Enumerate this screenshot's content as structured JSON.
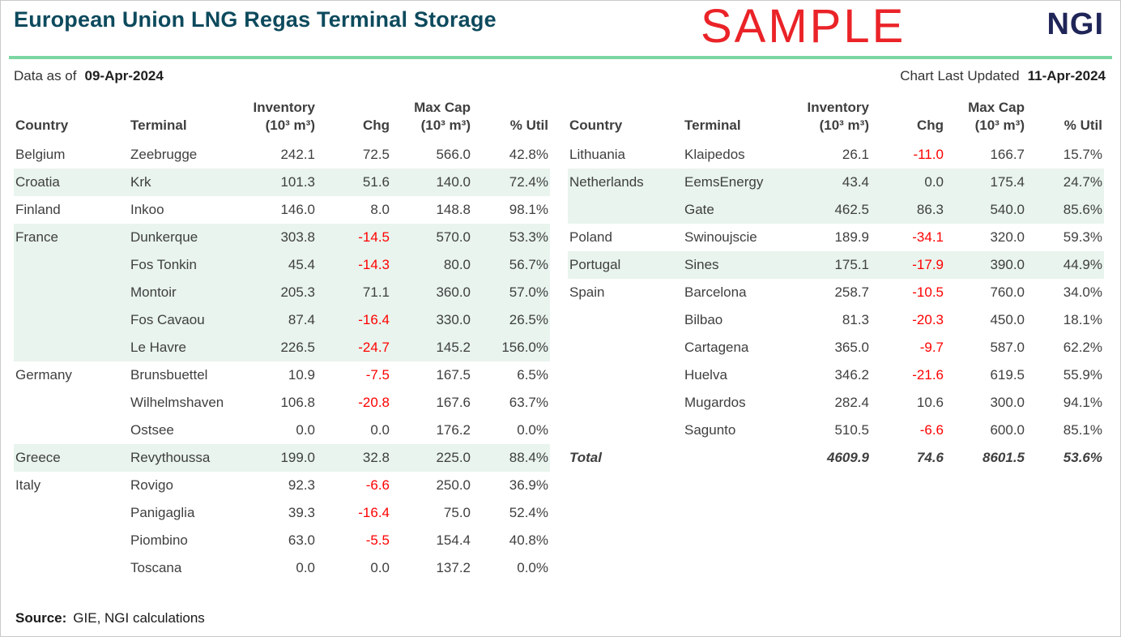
{
  "header": {
    "title": "European Union LNG Regas Terminal Storage",
    "watermark": "SAMPLE",
    "logo": "NGI",
    "data_as_of_label": "Data as of",
    "data_as_of_value": "09-Apr-2024",
    "last_updated_label": "Chart Last Updated",
    "last_updated_value": "11-Apr-2024"
  },
  "columns": {
    "country": "Country",
    "terminal": "Terminal",
    "inventory_line1": "Inventory",
    "inventory_line2": "(10³ m³)",
    "chg": "Chg",
    "maxcap_line1": "Max Cap",
    "maxcap_line2": "(10³ m³)",
    "util": "% Util"
  },
  "chart_data": {
    "type": "table",
    "title": "European Union LNG Regas Terminal Storage",
    "column_headers": [
      "Country",
      "Terminal",
      "Inventory (10³ m³)",
      "Chg",
      "Max Cap (10³ m³)",
      "% Util"
    ],
    "left_rows": [
      {
        "country": "Belgium",
        "terminal": "Zeebrugge",
        "inventory": "242.1",
        "chg": "72.5",
        "max_cap": "566.0",
        "util": "42.8%",
        "band": "white"
      },
      {
        "country": "Croatia",
        "terminal": "Krk",
        "inventory": "101.3",
        "chg": "51.6",
        "max_cap": "140.0",
        "util": "72.4%",
        "band": "mint"
      },
      {
        "country": "Finland",
        "terminal": "Inkoo",
        "inventory": "146.0",
        "chg": "8.0",
        "max_cap": "148.8",
        "util": "98.1%",
        "band": "white"
      },
      {
        "country": "France",
        "terminal": "Dunkerque",
        "inventory": "303.8",
        "chg": "-14.5",
        "max_cap": "570.0",
        "util": "53.3%",
        "band": "mint"
      },
      {
        "country": "",
        "terminal": "Fos Tonkin",
        "inventory": "45.4",
        "chg": "-14.3",
        "max_cap": "80.0",
        "util": "56.7%",
        "band": "mint"
      },
      {
        "country": "",
        "terminal": "Montoir",
        "inventory": "205.3",
        "chg": "71.1",
        "max_cap": "360.0",
        "util": "57.0%",
        "band": "mint"
      },
      {
        "country": "",
        "terminal": "Fos Cavaou",
        "inventory": "87.4",
        "chg": "-16.4",
        "max_cap": "330.0",
        "util": "26.5%",
        "band": "mint"
      },
      {
        "country": "",
        "terminal": "Le Havre",
        "inventory": "226.5",
        "chg": "-24.7",
        "max_cap": "145.2",
        "util": "156.0%",
        "band": "mint"
      },
      {
        "country": "Germany",
        "terminal": "Brunsbuettel",
        "inventory": "10.9",
        "chg": "-7.5",
        "max_cap": "167.5",
        "util": "6.5%",
        "band": "white"
      },
      {
        "country": "",
        "terminal": "Wilhelmshaven",
        "inventory": "106.8",
        "chg": "-20.8",
        "max_cap": "167.6",
        "util": "63.7%",
        "band": "white"
      },
      {
        "country": "",
        "terminal": "Ostsee",
        "inventory": "0.0",
        "chg": "0.0",
        "max_cap": "176.2",
        "util": "0.0%",
        "band": "white"
      },
      {
        "country": "Greece",
        "terminal": "Revythoussa",
        "inventory": "199.0",
        "chg": "32.8",
        "max_cap": "225.0",
        "util": "88.4%",
        "band": "mint"
      },
      {
        "country": "Italy",
        "terminal": "Rovigo",
        "inventory": "92.3",
        "chg": "-6.6",
        "max_cap": "250.0",
        "util": "36.9%",
        "band": "white"
      },
      {
        "country": "",
        "terminal": "Panigaglia",
        "inventory": "39.3",
        "chg": "-16.4",
        "max_cap": "75.0",
        "util": "52.4%",
        "band": "white"
      },
      {
        "country": "",
        "terminal": "Piombino",
        "inventory": "63.0",
        "chg": "-5.5",
        "max_cap": "154.4",
        "util": "40.8%",
        "band": "white"
      },
      {
        "country": "",
        "terminal": "Toscana",
        "inventory": "0.0",
        "chg": "0.0",
        "max_cap": "137.2",
        "util": "0.0%",
        "band": "white"
      }
    ],
    "right_rows": [
      {
        "country": "Lithuania",
        "terminal": "Klaipedos",
        "inventory": "26.1",
        "chg": "-11.0",
        "max_cap": "166.7",
        "util": "15.7%",
        "band": "white"
      },
      {
        "country": "Netherlands",
        "terminal": "EemsEnergy",
        "inventory": "43.4",
        "chg": "0.0",
        "max_cap": "175.4",
        "util": "24.7%",
        "band": "mint"
      },
      {
        "country": "",
        "terminal": "Gate",
        "inventory": "462.5",
        "chg": "86.3",
        "max_cap": "540.0",
        "util": "85.6%",
        "band": "mint"
      },
      {
        "country": "Poland",
        "terminal": "Swinoujscie",
        "inventory": "189.9",
        "chg": "-34.1",
        "max_cap": "320.0",
        "util": "59.3%",
        "band": "white"
      },
      {
        "country": "Portugal",
        "terminal": "Sines",
        "inventory": "175.1",
        "chg": "-17.9",
        "max_cap": "390.0",
        "util": "44.9%",
        "band": "mint"
      },
      {
        "country": "Spain",
        "terminal": "Barcelona",
        "inventory": "258.7",
        "chg": "-10.5",
        "max_cap": "760.0",
        "util": "34.0%",
        "band": "white"
      },
      {
        "country": "",
        "terminal": "Bilbao",
        "inventory": "81.3",
        "chg": "-20.3",
        "max_cap": "450.0",
        "util": "18.1%",
        "band": "white"
      },
      {
        "country": "",
        "terminal": "Cartagena",
        "inventory": "365.0",
        "chg": "-9.7",
        "max_cap": "587.0",
        "util": "62.2%",
        "band": "white"
      },
      {
        "country": "",
        "terminal": "Huelva",
        "inventory": "346.2",
        "chg": "-21.6",
        "max_cap": "619.5",
        "util": "55.9%",
        "band": "white"
      },
      {
        "country": "",
        "terminal": "Mugardos",
        "inventory": "282.4",
        "chg": "10.6",
        "max_cap": "300.0",
        "util": "94.1%",
        "band": "white"
      },
      {
        "country": "",
        "terminal": "Sagunto",
        "inventory": "510.5",
        "chg": "-6.6",
        "max_cap": "600.0",
        "util": "85.1%",
        "band": "white"
      }
    ],
    "total": {
      "label": "Total",
      "inventory": "4609.9",
      "chg": "74.6",
      "max_cap": "8601.5",
      "util": "53.6%",
      "band": "white"
    }
  },
  "footer": {
    "source_label": "Source:",
    "source_text": "GIE, NGI calculations"
  },
  "colors": {
    "title_teal": "#0d4a5d",
    "logo_navy": "#1f2557",
    "sample_red": "#ea2328",
    "divider_green": "#7cd6a2",
    "row_mint": "#e8f4ed",
    "negative_red": "#ff0000",
    "body_text": "#3f3f3f"
  }
}
